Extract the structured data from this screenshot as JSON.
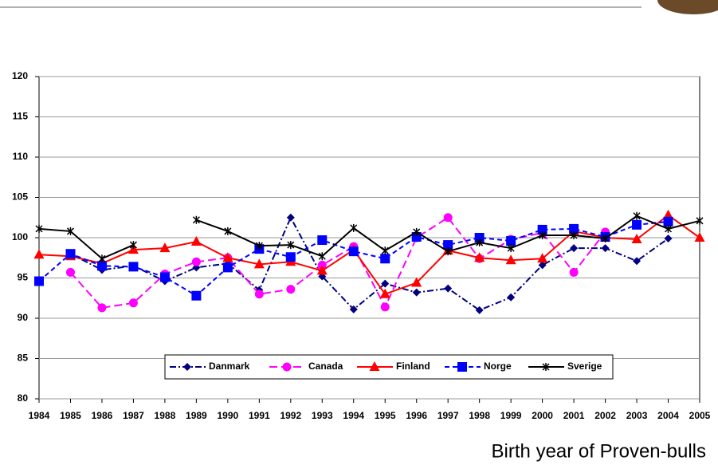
{
  "chart_data": {
    "type": "line",
    "x_label": "Birth year of Proven-bulls",
    "categories": [
      "1984",
      "1985",
      "1986",
      "1987",
      "1988",
      "1989",
      "1990",
      "1991",
      "1992",
      "1993",
      "1994",
      "1995",
      "1996",
      "1997",
      "1998",
      "1999",
      "2000",
      "2001",
      "2002",
      "2003",
      "2004",
      "2005"
    ],
    "series": [
      {
        "name": "Danmark",
        "color": "#000080",
        "marker": "diamond",
        "dash": "8 3 2 3",
        "values": [
          null,
          98.0,
          96.0,
          96.5,
          94.6,
          96.3,
          96.8,
          93.5,
          102.5,
          95.2,
          91.1,
          94.3,
          93.2,
          93.7,
          91.0,
          92.6,
          96.6,
          98.7,
          98.7,
          97.1,
          99.9,
          null
        ]
      },
      {
        "name": "Canada",
        "color": "#ff00ff",
        "marker": "circle",
        "dash": "10 5",
        "values": [
          null,
          95.7,
          91.3,
          91.9,
          95.5,
          97.0,
          97.5,
          93.0,
          93.6,
          96.6,
          98.9,
          91.4,
          100.0,
          102.5,
          97.4,
          99.8,
          100.6,
          95.7,
          100.7,
          null,
          null,
          null
        ]
      },
      {
        "name": "Finland",
        "color": "#ff0000",
        "marker": "triangle",
        "dash": "none",
        "values": [
          97.9,
          97.7,
          96.8,
          98.5,
          98.7,
          99.5,
          97.5,
          96.7,
          97.0,
          95.9,
          98.5,
          93.0,
          94.4,
          98.4,
          97.5,
          97.2,
          97.4,
          100.8,
          100.0,
          99.8,
          102.8,
          100.0
        ]
      },
      {
        "name": "Norge",
        "color": "#0000ff",
        "marker": "square",
        "dash": "6 4",
        "values": [
          94.6,
          98.0,
          96.5,
          96.4,
          95.1,
          92.8,
          96.3,
          98.6,
          97.6,
          99.7,
          98.3,
          97.4,
          100.1,
          99.1,
          100.0,
          99.6,
          101.0,
          101.1,
          100.1,
          101.6,
          102.0,
          null
        ]
      },
      {
        "name": "Sverige",
        "color": "#000000",
        "marker": "star",
        "dash": "none",
        "values": [
          101.1,
          100.8,
          97.4,
          99.1,
          null,
          102.2,
          100.8,
          99.0,
          99.1,
          97.7,
          101.2,
          98.4,
          100.7,
          98.3,
          99.4,
          98.7,
          100.3,
          100.3,
          99.9,
          102.7,
          101.1,
          102.1
        ]
      }
    ],
    "ylim": [
      80,
      120
    ],
    "yticks": [
      80,
      85,
      90,
      95,
      100,
      105,
      110,
      115,
      120
    ],
    "grid": true,
    "legend": "bottom"
  }
}
